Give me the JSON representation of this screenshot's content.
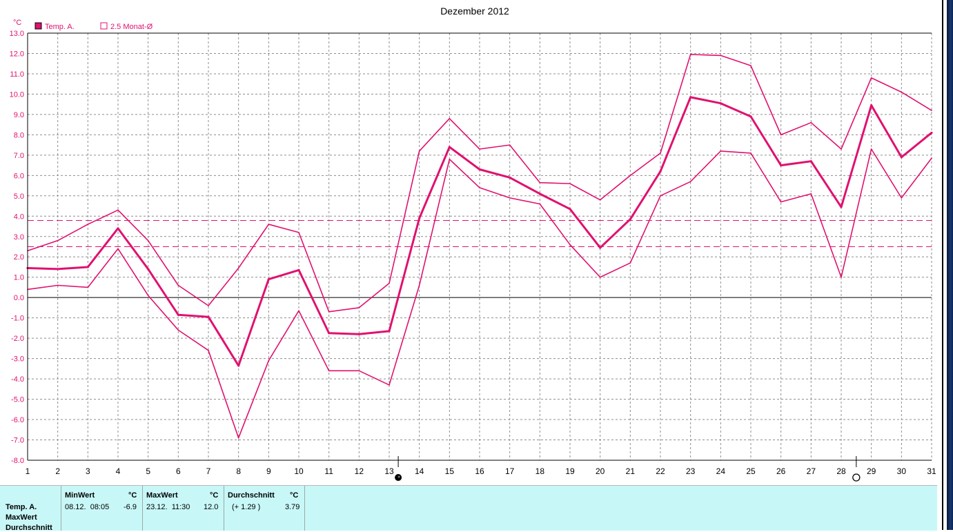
{
  "chart_data": {
    "type": "line",
    "title": "Dezember 2012",
    "unit": "°C",
    "legend": [
      {
        "name": "Temp. A.",
        "swatch": "filled"
      },
      {
        "name": "2.5 Monat-Ø",
        "swatch": "hollow"
      }
    ],
    "legend_position": "top-left",
    "x": [
      1,
      2,
      3,
      4,
      5,
      6,
      7,
      8,
      9,
      10,
      11,
      12,
      13,
      14,
      15,
      16,
      17,
      18,
      19,
      20,
      21,
      22,
      23,
      24,
      25,
      26,
      27,
      28,
      29,
      30,
      31
    ],
    "xlim": [
      1,
      31
    ],
    "ylim": [
      -8.0,
      13.0
    ],
    "yticks": [
      "13.0",
      "12.0",
      "11.0",
      "10.0",
      "9.0",
      "8.0",
      "7.0",
      "6.0",
      "5.0",
      "4.0",
      "3.0",
      "2.0",
      "1.0",
      "0.0",
      "-1.0",
      "-2.0",
      "-3.0",
      "-4.0",
      "-5.0",
      "-6.0",
      "-7.0",
      "-8.0"
    ],
    "grid": true,
    "series": [
      {
        "name": "Temp. A.",
        "role": "mean",
        "color": "#e0116f",
        "values": [
          1.45,
          1.4,
          1.5,
          3.4,
          1.4,
          -0.85,
          -0.95,
          -3.35,
          0.9,
          1.35,
          -1.75,
          -1.8,
          -1.65,
          3.9,
          7.4,
          6.3,
          5.9,
          5.1,
          4.35,
          2.45,
          3.85,
          6.2,
          9.85,
          9.55,
          8.9,
          6.5,
          6.7,
          4.45,
          9.45,
          6.9,
          8.1
        ]
      },
      {
        "name": "MaxWert",
        "role": "max",
        "color": "#e0116f",
        "values": [
          2.3,
          2.8,
          3.6,
          4.3,
          2.8,
          0.6,
          -0.4,
          1.45,
          3.6,
          3.2,
          -0.7,
          -0.5,
          0.7,
          7.2,
          8.8,
          7.3,
          7.5,
          5.65,
          5.6,
          4.8,
          6.0,
          7.1,
          11.95,
          11.9,
          11.4,
          8.0,
          8.6,
          7.3,
          10.8,
          10.1,
          9.2
        ]
      },
      {
        "name": "MinWert",
        "role": "min",
        "color": "#e0116f",
        "values": [
          0.4,
          0.6,
          0.5,
          2.4,
          0.1,
          -1.6,
          -2.6,
          -6.9,
          -3.1,
          -0.65,
          -3.6,
          -3.6,
          -4.3,
          0.6,
          6.8,
          5.4,
          4.9,
          4.6,
          2.6,
          1.0,
          1.7,
          5.0,
          5.7,
          7.2,
          7.1,
          4.7,
          5.1,
          1.0,
          7.3,
          4.9,
          6.85
        ]
      }
    ],
    "reference_lines": [
      3.79,
      2.5
    ],
    "moon_markers": [
      {
        "phase": "new-moon",
        "x": 13.3
      },
      {
        "phase": "full-moon",
        "x": 28.5
      }
    ]
  },
  "stats": {
    "row_labels": [
      "Temp. A.",
      "MaxWert",
      "Durchschnitt"
    ],
    "min": {
      "head": "MinWert",
      "unit": "°C",
      "datetime": "08.12.  08:05",
      "value": "-6.9"
    },
    "max": {
      "head": "MaxWert",
      "unit": "°C",
      "datetime": "23.12.  11:30",
      "value": "12.0"
    },
    "avg": {
      "head": "Durchschnitt",
      "unit": "°C",
      "delta": "(+ 1.29 )",
      "value": "3.79"
    }
  }
}
